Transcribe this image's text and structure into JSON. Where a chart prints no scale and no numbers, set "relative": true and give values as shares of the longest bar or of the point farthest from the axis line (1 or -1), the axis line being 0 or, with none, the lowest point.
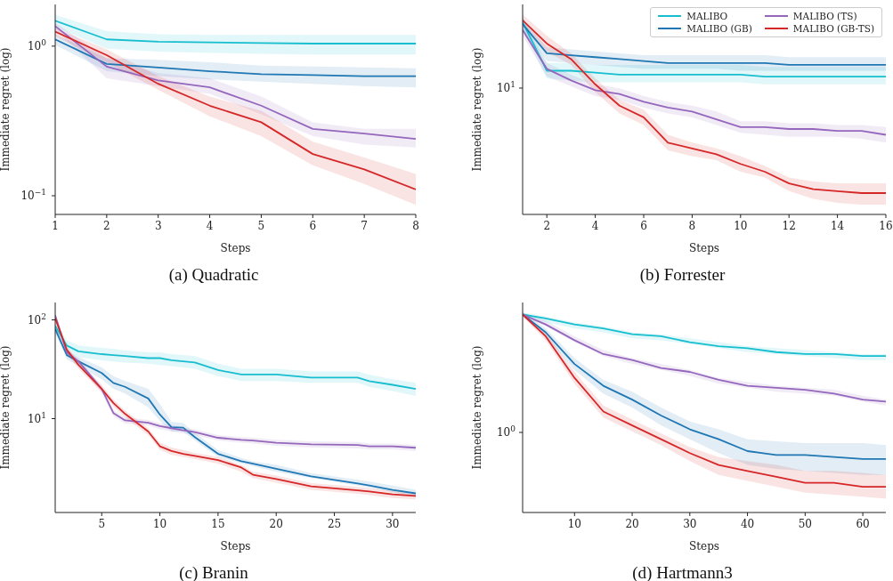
{
  "chart_data": [
    {
      "type": "line",
      "title": "(a) Quadratic",
      "xlabel": "Steps",
      "ylabel": "Immediate regret (log)",
      "log": true,
      "x": [
        1,
        2,
        3,
        4,
        5,
        6,
        7,
        8
      ],
      "xlim": [
        1,
        8
      ],
      "xticks": [
        1,
        2,
        3,
        4,
        5,
        6,
        7,
        8
      ],
      "ylim": [
        0.075,
        1.9
      ],
      "yticks": [
        {
          "value": 0.1,
          "label": "10$^{−1}$"
        },
        {
          "value": 1,
          "label": "10$^{0}$"
        }
      ],
      "series": [
        {
          "color": "#17becf",
          "values": [
            1.48,
            1.11,
            1.07,
            1.06,
            1.05,
            1.04,
            1.04,
            1.04
          ],
          "lower": [
            1.35,
            0.96,
            0.92,
            0.9,
            0.89,
            0.88,
            0.88,
            0.88
          ],
          "upper": [
            1.62,
            1.26,
            1.2,
            1.19,
            1.19,
            1.19,
            1.19,
            1.19
          ]
        },
        {
          "color": "#1f77b4",
          "values": [
            1.11,
            0.76,
            0.72,
            0.68,
            0.65,
            0.64,
            0.63,
            0.63
          ],
          "lower": [
            1.02,
            0.68,
            0.63,
            0.6,
            0.58,
            0.56,
            0.54,
            0.53
          ],
          "upper": [
            1.2,
            0.83,
            0.81,
            0.78,
            0.74,
            0.73,
            0.72,
            0.71
          ]
        },
        {
          "color": "#9467bd",
          "values": [
            1.36,
            0.73,
            0.59,
            0.53,
            0.4,
            0.28,
            0.26,
            0.24
          ],
          "lower": [
            1.29,
            0.61,
            0.54,
            0.48,
            0.35,
            0.25,
            0.22,
            0.21
          ],
          "upper": [
            1.44,
            0.83,
            0.66,
            0.61,
            0.46,
            0.31,
            0.28,
            0.28
          ]
        },
        {
          "color": "#d62728",
          "values": [
            1.25,
            0.87,
            0.56,
            0.4,
            0.31,
            0.19,
            0.15,
            0.11
          ],
          "lower": [
            1.17,
            0.78,
            0.51,
            0.34,
            0.25,
            0.16,
            0.12,
            0.087
          ],
          "upper": [
            1.32,
            0.95,
            0.63,
            0.46,
            0.37,
            0.23,
            0.18,
            0.14
          ]
        }
      ]
    },
    {
      "type": "line",
      "title": "(b) Forrester",
      "xlabel": "Steps",
      "ylabel": "Immediate regret (log)",
      "relative": true,
      "legend": "top right",
      "x": [
        1,
        2,
        3,
        4,
        5,
        6,
        7,
        8,
        9,
        10,
        11,
        12,
        13,
        14,
        15,
        16
      ],
      "xlim": [
        1,
        16
      ],
      "xticks": [
        2,
        4,
        6,
        8,
        10,
        12,
        14,
        16
      ],
      "annotations": [
        "10$^{1}$"
      ],
      "series": [
        {
          "name": "MALIBO",
          "color": "#17becf",
          "values": [
            0.99,
            0.74,
            0.74,
            0.73,
            0.72,
            0.72,
            0.72,
            0.72,
            0.72,
            0.72,
            0.71,
            0.71,
            0.71,
            0.71,
            0.71,
            0.71
          ],
          "lower": [
            0.96,
            0.7,
            0.69,
            0.68,
            0.68,
            0.68,
            0.68,
            0.68,
            0.68,
            0.68,
            0.67,
            0.67,
            0.67,
            0.67,
            0.67,
            0.67
          ],
          "upper": [
            1.02,
            0.78,
            0.78,
            0.77,
            0.77,
            0.77,
            0.77,
            0.77,
            0.77,
            0.77,
            0.76,
            0.76,
            0.76,
            0.76,
            0.76,
            0.76
          ]
        },
        {
          "name": "MALIBO (GB)",
          "color": "#1f77b4",
          "values": [
            0.98,
            0.83,
            0.82,
            0.81,
            0.8,
            0.79,
            0.78,
            0.78,
            0.78,
            0.78,
            0.78,
            0.77,
            0.77,
            0.77,
            0.77,
            0.77
          ],
          "lower": [
            0.95,
            0.79,
            0.78,
            0.77,
            0.76,
            0.75,
            0.75,
            0.75,
            0.75,
            0.74,
            0.74,
            0.74,
            0.74,
            0.74,
            0.74,
            0.74
          ],
          "upper": [
            1.01,
            0.86,
            0.85,
            0.84,
            0.83,
            0.82,
            0.82,
            0.82,
            0.82,
            0.82,
            0.82,
            0.81,
            0.81,
            0.81,
            0.81,
            0.81
          ]
        },
        {
          "name": "MALIBO (TS)",
          "color": "#9467bd",
          "values": [
            0.95,
            0.75,
            0.69,
            0.64,
            0.62,
            0.58,
            0.55,
            0.53,
            0.49,
            0.45,
            0.45,
            0.44,
            0.44,
            0.43,
            0.43,
            0.41
          ],
          "lower": [
            0.92,
            0.71,
            0.66,
            0.61,
            0.59,
            0.55,
            0.52,
            0.5,
            0.46,
            0.42,
            0.41,
            0.4,
            0.4,
            0.4,
            0.39,
            0.37
          ],
          "upper": [
            0.98,
            0.78,
            0.72,
            0.67,
            0.65,
            0.61,
            0.58,
            0.56,
            0.53,
            0.48,
            0.48,
            0.47,
            0.47,
            0.46,
            0.46,
            0.45
          ]
        },
        {
          "name": "MALIBO (GB-TS)",
          "color": "#d62728",
          "values": [
            1.0,
            0.88,
            0.8,
            0.67,
            0.56,
            0.5,
            0.37,
            0.34,
            0.31,
            0.26,
            0.22,
            0.16,
            0.13,
            0.12,
            0.11,
            0.11
          ],
          "lower": [
            0.97,
            0.84,
            0.77,
            0.63,
            0.52,
            0.46,
            0.33,
            0.3,
            0.28,
            0.22,
            0.19,
            0.12,
            0.08,
            0.06,
            0.05,
            0.05
          ],
          "upper": [
            1.03,
            0.92,
            0.83,
            0.7,
            0.59,
            0.54,
            0.41,
            0.37,
            0.34,
            0.3,
            0.25,
            0.19,
            0.17,
            0.16,
            0.16,
            0.16
          ]
        }
      ]
    },
    {
      "type": "line",
      "title": "(c) Branin",
      "xlabel": "Steps",
      "ylabel": "Immediate regret (log)",
      "log": true,
      "x": [
        1,
        2,
        3,
        5,
        6,
        7,
        9,
        10,
        11,
        12,
        13,
        15,
        17,
        18,
        20,
        23,
        27,
        28,
        30,
        32
      ],
      "xlim": [
        1,
        32
      ],
      "xticks": [
        5,
        10,
        15,
        20,
        25,
        30
      ],
      "ylim": [
        1.12,
        150
      ],
      "yticks": [
        {
          "value": 10,
          "label": "10$^{1}$"
        },
        {
          "value": 100,
          "label": "10$^{2}$"
        }
      ],
      "series": [
        {
          "color": "#17becf",
          "values": [
            87,
            55,
            48,
            45,
            44,
            43,
            41,
            41,
            39,
            38,
            37,
            31,
            28,
            28,
            28,
            26,
            26,
            24,
            22,
            20
          ],
          "lower": [
            78,
            48,
            42,
            39,
            38,
            37,
            36,
            35,
            34,
            33,
            32,
            27,
            24,
            24,
            24,
            23,
            23,
            21,
            19,
            17
          ],
          "upper": [
            98,
            62,
            55,
            52,
            51,
            49,
            47,
            47,
            45,
            44,
            43,
            36,
            32,
            32,
            32,
            30,
            30,
            28,
            25,
            23
          ]
        },
        {
          "color": "#1f77b4",
          "values": [
            81,
            44,
            38,
            29,
            23,
            21,
            16,
            11,
            8.2,
            8.1,
            6.5,
            4.4,
            3.7,
            3.5,
            3.1,
            2.6,
            2.2,
            2.1,
            1.9,
            1.75
          ],
          "lower": [
            74,
            40,
            34,
            25,
            20,
            18,
            13,
            9.5,
            7.4,
            7.4,
            6.0,
            4.1,
            3.5,
            3.3,
            2.9,
            2.5,
            2.1,
            2.0,
            1.8,
            1.65
          ],
          "upper": [
            89,
            48,
            42,
            33,
            27,
            24,
            20,
            14,
            9.3,
            9.0,
            7.2,
            4.8,
            4.0,
            3.7,
            3.4,
            2.8,
            2.4,
            2.3,
            2.1,
            1.9
          ]
        },
        {
          "color": "#9467bd",
          "values": [
            111,
            47,
            38,
            20,
            11.4,
            9.6,
            9.1,
            8.4,
            8.0,
            7.6,
            7.3,
            6.4,
            6.1,
            6.0,
            5.7,
            5.5,
            5.4,
            5.25,
            5.25,
            5.07
          ],
          "lower": [
            103,
            43,
            35,
            18,
            10.6,
            8.9,
            8.5,
            7.8,
            7.4,
            7.1,
            6.8,
            6.0,
            5.7,
            5.6,
            5.3,
            5.1,
            5.0,
            4.9,
            4.9,
            4.7
          ],
          "upper": [
            119,
            50,
            41,
            21,
            12.2,
            10.3,
            9.7,
            9.0,
            8.6,
            8.1,
            7.8,
            6.8,
            6.5,
            6.4,
            6.1,
            5.9,
            5.8,
            5.6,
            5.6,
            5.4
          ]
        },
        {
          "color": "#d62728",
          "values": [
            104,
            50,
            35,
            20,
            14.4,
            11.2,
            7.4,
            5.25,
            4.7,
            4.4,
            4.2,
            3.8,
            3.2,
            2.7,
            2.45,
            2.06,
            1.88,
            1.83,
            1.71,
            1.65
          ],
          "lower": [
            96,
            46,
            32,
            18.7,
            13.2,
            10.3,
            6.8,
            4.8,
            4.3,
            4.1,
            3.9,
            3.5,
            2.9,
            2.5,
            2.25,
            1.9,
            1.73,
            1.68,
            1.57,
            1.52
          ],
          "upper": [
            112,
            54,
            38,
            22,
            15.6,
            12.1,
            8.0,
            5.7,
            5.1,
            4.8,
            4.5,
            4.1,
            3.4,
            2.9,
            2.65,
            2.22,
            2.03,
            1.98,
            1.85,
            1.78
          ]
        }
      ]
    },
    {
      "type": "line",
      "title": "(d) Hartmann3",
      "xlabel": "Steps",
      "ylabel": "Immediate regret (log)",
      "relative": true,
      "x": [
        1,
        5,
        10,
        15,
        20,
        25,
        30,
        35,
        40,
        45,
        50,
        55,
        60,
        64
      ],
      "xlim": [
        1,
        64
      ],
      "xticks": [
        10,
        20,
        30,
        40,
        50,
        60
      ],
      "annotations": [
        "10$^{0}$"
      ],
      "series": [
        {
          "color": "#17becf",
          "values": [
            1.0,
            0.98,
            0.95,
            0.93,
            0.9,
            0.89,
            0.86,
            0.84,
            0.83,
            0.81,
            0.8,
            0.8,
            0.79,
            0.79
          ],
          "lower": [
            0.99,
            0.96,
            0.93,
            0.91,
            0.88,
            0.87,
            0.85,
            0.83,
            0.81,
            0.8,
            0.79,
            0.78,
            0.77,
            0.77
          ],
          "upper": [
            1.01,
            0.99,
            0.96,
            0.94,
            0.91,
            0.9,
            0.88,
            0.86,
            0.84,
            0.83,
            0.82,
            0.81,
            0.8,
            0.8
          ]
        },
        {
          "color": "#1f77b4",
          "values": [
            1.0,
            0.91,
            0.75,
            0.64,
            0.57,
            0.49,
            0.42,
            0.37,
            0.31,
            0.29,
            0.29,
            0.28,
            0.27,
            0.27
          ],
          "lower": [
            0.99,
            0.89,
            0.72,
            0.6,
            0.53,
            0.44,
            0.37,
            0.3,
            0.24,
            0.22,
            0.21,
            0.2,
            0.19,
            0.19
          ],
          "upper": [
            1.01,
            0.93,
            0.78,
            0.67,
            0.61,
            0.53,
            0.46,
            0.42,
            0.37,
            0.36,
            0.35,
            0.35,
            0.35,
            0.34
          ]
        },
        {
          "color": "#9467bd",
          "values": [
            1.0,
            0.95,
            0.87,
            0.8,
            0.77,
            0.73,
            0.71,
            0.67,
            0.64,
            0.63,
            0.62,
            0.6,
            0.57,
            0.56
          ],
          "lower": [
            0.99,
            0.94,
            0.86,
            0.79,
            0.75,
            0.72,
            0.69,
            0.65,
            0.63,
            0.61,
            0.6,
            0.59,
            0.56,
            0.54
          ],
          "upper": [
            1.01,
            0.97,
            0.89,
            0.82,
            0.78,
            0.75,
            0.72,
            0.68,
            0.66,
            0.64,
            0.63,
            0.62,
            0.59,
            0.57
          ]
        },
        {
          "color": "#d62728",
          "values": [
            1.0,
            0.89,
            0.68,
            0.51,
            0.44,
            0.37,
            0.3,
            0.24,
            0.21,
            0.18,
            0.15,
            0.15,
            0.13,
            0.13
          ],
          "lower": [
            0.99,
            0.87,
            0.65,
            0.48,
            0.41,
            0.34,
            0.26,
            0.19,
            0.16,
            0.13,
            0.1,
            0.09,
            0.08,
            0.07
          ],
          "upper": [
            1.01,
            0.91,
            0.71,
            0.54,
            0.47,
            0.4,
            0.33,
            0.28,
            0.26,
            0.24,
            0.21,
            0.21,
            0.2,
            0.19
          ]
        }
      ]
    }
  ]
}
